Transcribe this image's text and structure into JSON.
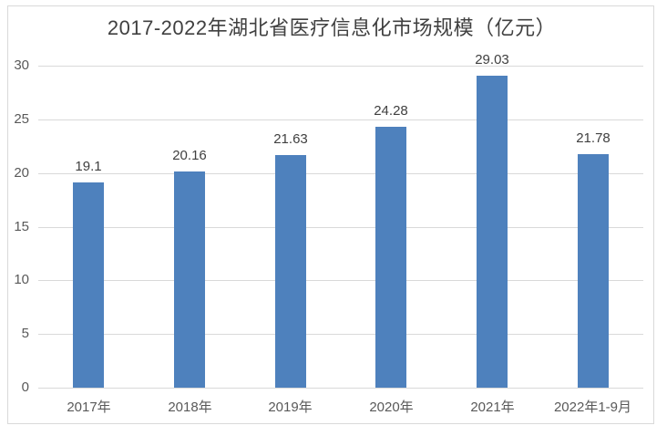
{
  "chart_data": {
    "type": "bar",
    "title": "2017-2022年湖北省医疗信息化市场规模（亿元）",
    "categories": [
      "2017年",
      "2018年",
      "2019年",
      "2020年",
      "2021年",
      "2022年1-9月"
    ],
    "values": [
      19.1,
      20.16,
      21.63,
      24.28,
      29.03,
      21.78
    ],
    "data_labels": [
      "19.1",
      "20.16",
      "21.63",
      "24.28",
      "29.03",
      "21.78"
    ],
    "xlabel": "",
    "ylabel": "",
    "ylim": [
      0,
      30
    ],
    "ytick_step": 5,
    "ytick_labels": [
      "0",
      "5",
      "10",
      "15",
      "20",
      "25",
      "30"
    ],
    "grid": true,
    "legend": false,
    "colors": {
      "bar": "#4e81bd",
      "gridline": "#d9d9d9",
      "frame_border": "#d9d9d9",
      "title_text": "#404040",
      "axis_text": "#595959",
      "data_label_text": "#404040",
      "background": "#ffffff"
    }
  }
}
